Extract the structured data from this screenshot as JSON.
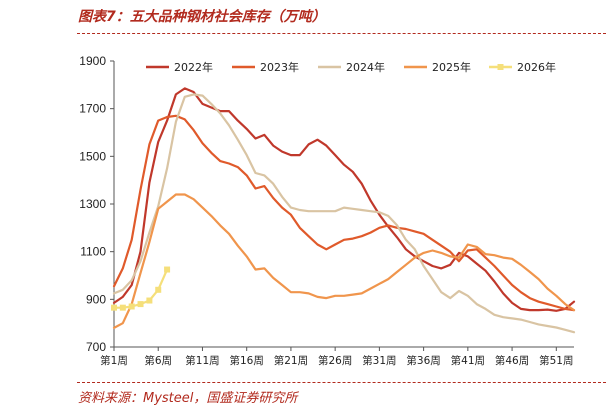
{
  "figure": {
    "title": "图表7：五大品种钢材社会库存（万吨）",
    "source": "资料来源：Mysteel，国盛证券研究所"
  },
  "chart_data": {
    "type": "line",
    "title": "五大品种钢材社会库存（万吨）",
    "xlabel": "",
    "ylabel": "",
    "ylim": [
      700,
      1900
    ],
    "yticks": [
      700,
      900,
      1100,
      1300,
      1500,
      1700,
      1900
    ],
    "xrange": [
      1,
      53
    ],
    "xticks": [
      {
        "week": 1,
        "label": "第1周"
      },
      {
        "week": 6,
        "label": "第6周"
      },
      {
        "week": 11,
        "label": "第11周"
      },
      {
        "week": 16,
        "label": "第16周"
      },
      {
        "week": 21,
        "label": "第21周"
      },
      {
        "week": 26,
        "label": "第26周"
      },
      {
        "week": 31,
        "label": "第31周"
      },
      {
        "week": 36,
        "label": "第36周"
      },
      {
        "week": 41,
        "label": "第41周"
      },
      {
        "week": 46,
        "label": "第46周"
      },
      {
        "week": 51,
        "label": "第51周"
      }
    ],
    "legend_position": "top-right",
    "series": [
      {
        "name": "2022年",
        "color": "#c0382b",
        "marker": "none",
        "values": [
          885,
          910,
          960,
          1100,
          1390,
          1560,
          1650,
          1760,
          1785,
          1770,
          1720,
          1705,
          1690,
          1690,
          1650,
          1615,
          1575,
          1590,
          1545,
          1520,
          1505,
          1505,
          1550,
          1570,
          1545,
          1505,
          1465,
          1435,
          1385,
          1315,
          1255,
          1205,
          1160,
          1110,
          1080,
          1060,
          1040,
          1030,
          1045,
          1095,
          1080,
          1050,
          1020,
          975,
          925,
          885,
          860,
          855,
          855,
          857,
          852,
          860,
          890
        ]
      },
      {
        "name": "2023年",
        "color": "#e05a2b",
        "marker": "none",
        "values": [
          955,
          1030,
          1150,
          1360,
          1550,
          1650,
          1665,
          1670,
          1655,
          1610,
          1555,
          1515,
          1480,
          1470,
          1455,
          1420,
          1365,
          1375,
          1325,
          1285,
          1255,
          1200,
          1165,
          1130,
          1110,
          1130,
          1150,
          1155,
          1165,
          1180,
          1200,
          1210,
          1200,
          1195,
          1185,
          1175,
          1150,
          1125,
          1100,
          1060,
          1105,
          1110,
          1075,
          1040,
          1000,
          960,
          930,
          905,
          890,
          880,
          870,
          860,
          855
        ]
      },
      {
        "name": "2024年",
        "color": "#d9c4a3",
        "marker": "none",
        "values": [
          925,
          940,
          980,
          1060,
          1180,
          1290,
          1450,
          1645,
          1750,
          1760,
          1755,
          1720,
          1680,
          1630,
          1570,
          1505,
          1430,
          1420,
          1385,
          1330,
          1285,
          1275,
          1270,
          1270,
          1270,
          1270,
          1285,
          1280,
          1275,
          1270,
          1265,
          1250,
          1210,
          1150,
          1110,
          1040,
          985,
          930,
          905,
          935,
          915,
          880,
          860,
          835,
          825,
          820,
          815,
          805,
          795,
          788,
          782,
          772,
          762
        ]
      },
      {
        "name": "2025年",
        "color": "#f0954c",
        "marker": "none",
        "values": [
          780,
          800,
          880,
          1010,
          1140,
          1280,
          1310,
          1340,
          1340,
          1320,
          1285,
          1250,
          1210,
          1175,
          1125,
          1080,
          1025,
          1030,
          990,
          960,
          930,
          930,
          925,
          910,
          905,
          915,
          915,
          920,
          925,
          945,
          965,
          985,
          1015,
          1045,
          1075,
          1095,
          1105,
          1095,
          1080,
          1075,
          1130,
          1120,
          1090,
          1085,
          1075,
          1070,
          1045,
          1015,
          985,
          945,
          915,
          880,
          855
        ]
      },
      {
        "name": "2026年",
        "color": "#f5df7a",
        "marker": "square",
        "values": [
          865,
          865,
          870,
          880,
          895,
          940,
          1025
        ]
      }
    ]
  }
}
